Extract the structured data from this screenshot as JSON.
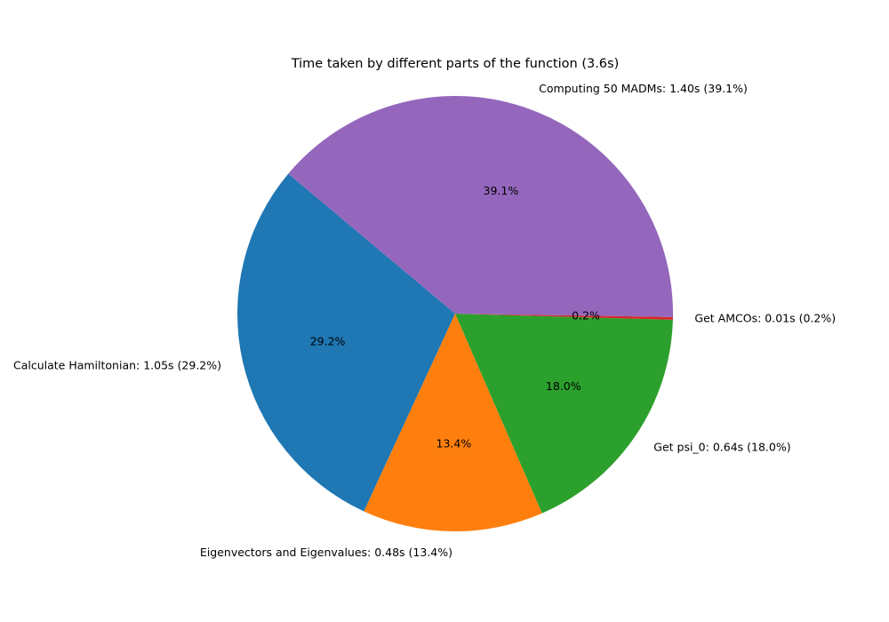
{
  "chart_data": {
    "type": "pie",
    "title": "Time taken by different parts of the function (3.6s)",
    "slices": [
      {
        "name": "Calculate Hamiltonian",
        "value": 1.05,
        "percent": 29.2,
        "color": "#1f77b4",
        "label": "Calculate Hamiltonian: 1.05s (29.2%)",
        "pct_label": "29.2%"
      },
      {
        "name": "Eigenvectors and Eigenvalues",
        "value": 0.48,
        "percent": 13.4,
        "color": "#ff7f0e",
        "label": "Eigenvectors and Eigenvalues: 0.48s (13.4%)",
        "pct_label": "13.4%"
      },
      {
        "name": "Get psi_0",
        "value": 0.64,
        "percent": 18.0,
        "color": "#2ca02c",
        "label": "Get psi_0: 0.64s (18.0%)",
        "pct_label": "18.0%"
      },
      {
        "name": "Get AMCOs",
        "value": 0.01,
        "percent": 0.2,
        "color": "#d62728",
        "label": "Get AMCOs: 0.01s (0.2%)",
        "pct_label": "0.2%"
      },
      {
        "name": "Computing 50 MADMs",
        "value": 1.4,
        "percent": 39.1,
        "color": "#9467bd",
        "label": "Computing 50 MADMs: 1.40s (39.1%)",
        "pct_label": "39.1%"
      }
    ]
  }
}
